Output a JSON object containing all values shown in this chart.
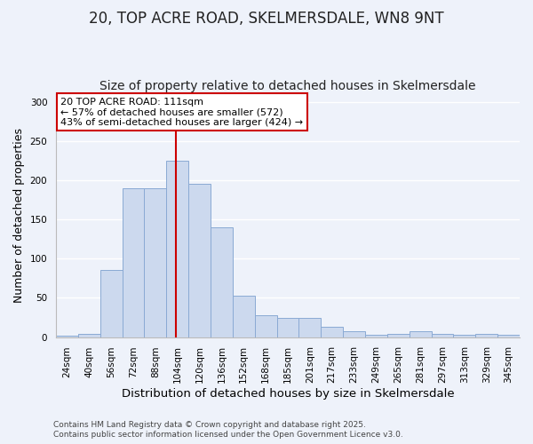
{
  "title": "20, TOP ACRE ROAD, SKELMERSDALE, WN8 9NT",
  "subtitle": "Size of property relative to detached houses in Skelmersdale",
  "xlabel": "Distribution of detached houses by size in Skelmersdale",
  "ylabel": "Number of detached properties",
  "categories": [
    "24sqm",
    "40sqm",
    "56sqm",
    "72sqm",
    "88sqm",
    "104sqm",
    "120sqm",
    "136sqm",
    "152sqm",
    "168sqm",
    "185sqm",
    "201sqm",
    "217sqm",
    "233sqm",
    "249sqm",
    "265sqm",
    "281sqm",
    "297sqm",
    "313sqm",
    "329sqm",
    "345sqm"
  ],
  "values": [
    2,
    4,
    85,
    190,
    190,
    225,
    195,
    140,
    53,
    28,
    25,
    25,
    13,
    8,
    3,
    4,
    7,
    4,
    3,
    4,
    3
  ],
  "bar_color": "#ccd9ee",
  "bar_edge_color": "#8aaad4",
  "ylim": [
    0,
    310
  ],
  "yticks": [
    0,
    50,
    100,
    150,
    200,
    250,
    300
  ],
  "vline_color": "#cc0000",
  "annotation_title": "20 TOP ACRE ROAD: 111sqm",
  "annotation_line1": "← 57% of detached houses are smaller (572)",
  "annotation_line2": "43% of semi-detached houses are larger (424) →",
  "annotation_box_color": "#ffffff",
  "annotation_box_edge": "#cc0000",
  "background_color": "#eef2fa",
  "grid_color": "#ffffff",
  "footer_line1": "Contains HM Land Registry data © Crown copyright and database right 2025.",
  "footer_line2": "Contains public sector information licensed under the Open Government Licence v3.0.",
  "title_fontsize": 12,
  "subtitle_fontsize": 10,
  "xlabel_fontsize": 9.5,
  "ylabel_fontsize": 9,
  "tick_fontsize": 7.5,
  "annotation_fontsize": 8,
  "footer_fontsize": 6.5
}
